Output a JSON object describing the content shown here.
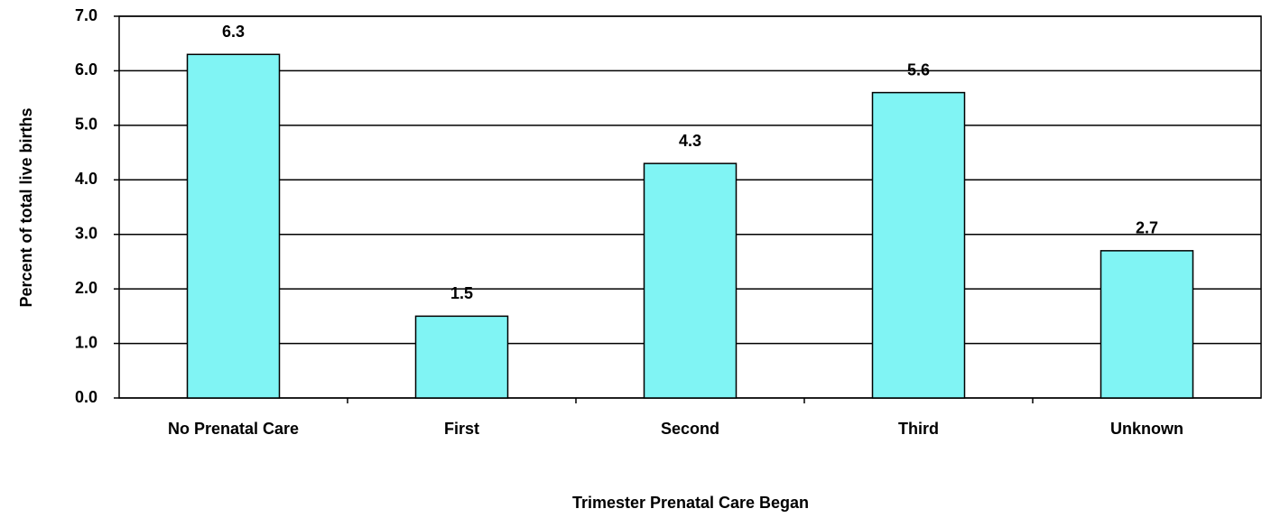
{
  "chart_data": {
    "type": "bar",
    "categories": [
      "No Prenatal Care",
      "First",
      "Second",
      "Third",
      "Unknown"
    ],
    "values": [
      6.3,
      1.5,
      4.3,
      5.6,
      2.7
    ],
    "color": "#80f4f4",
    "ylim": [
      0,
      7
    ],
    "yticks": [
      {
        "value": 0,
        "label": "0.0"
      },
      {
        "value": 1,
        "label": "1.0"
      },
      {
        "value": 2,
        "label": "2.0"
      },
      {
        "value": 3,
        "label": "3.0"
      },
      {
        "value": 4,
        "label": "4.0"
      },
      {
        "value": 5,
        "label": "5.0"
      },
      {
        "value": 6,
        "label": "6.0"
      },
      {
        "value": 7,
        "label": "7.0"
      }
    ],
    "grid": true,
    "xlabel": "Trimester Prenatal Care Began",
    "ylabel": "Percent of total live births"
  }
}
